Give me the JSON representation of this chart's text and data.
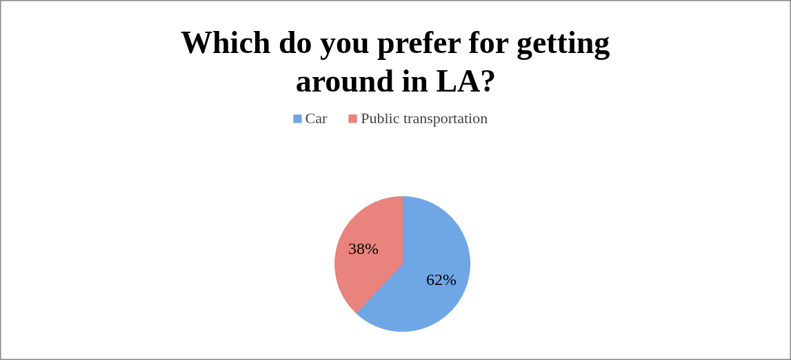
{
  "chart_data": {
    "type": "pie",
    "title": "Which do you prefer for getting around in LA?",
    "categories": [
      "Car",
      "Public transportation"
    ],
    "values": [
      62,
      38
    ],
    "colors": [
      "#6fa6e6",
      "#e9837d"
    ],
    "value_labels": [
      "62%",
      "38%"
    ],
    "legend": "top"
  }
}
